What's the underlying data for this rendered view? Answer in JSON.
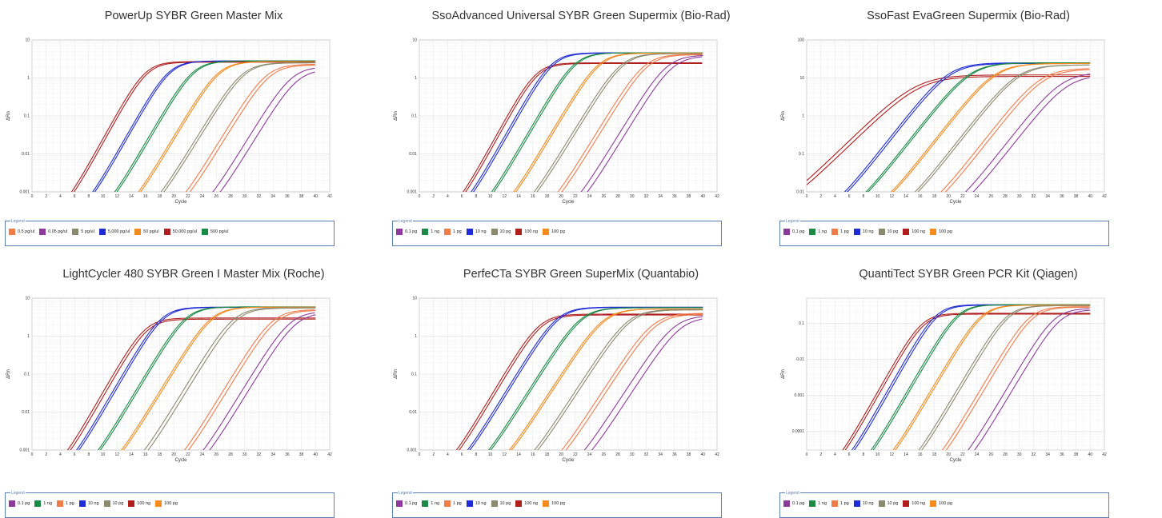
{
  "charts": [
    {
      "title": "PowerUp SYBR Green Master Mix",
      "chart_data": {
        "type": "line",
        "xlabel": "Cycle",
        "ylabel": "ΔRn",
        "yscale": "log",
        "xlim": [
          0,
          42
        ],
        "ylim": [
          0.001,
          10
        ],
        "ytick_labels": [
          "0.001",
          "0.01",
          "0.1",
          "1",
          "10"
        ],
        "legend_title": "Legend",
        "legend_placement": "bottom",
        "legend": [
          {
            "label": "0.5 pg/ul",
            "color": "#f07c4a"
          },
          {
            "label": "0.05 pg/ul",
            "color": "#8e3a9d"
          },
          {
            "label": "5 pg/ul",
            "color": "#8b8a6e"
          },
          {
            "label": "5,000 pg/ul",
            "color": "#1f2bd6"
          },
          {
            "label": "50 pg/ul",
            "color": "#f58a1f"
          },
          {
            "label": "50,000 pg/ul",
            "color": "#b01e1e"
          },
          {
            "label": "500 pg/ul",
            "color": "#1a8a45"
          }
        ],
        "series": [
          {
            "color": "#b01e1e",
            "ct": 12.5,
            "plateau": 2.7,
            "k": 0.78
          },
          {
            "color": "#b01e1e",
            "ct": 12.8,
            "plateau": 2.6,
            "k": 0.78
          },
          {
            "color": "#1f2bd6",
            "ct": 15.8,
            "plateau": 2.8,
            "k": 0.76
          },
          {
            "color": "#1f2bd6",
            "ct": 16.1,
            "plateau": 2.8,
            "k": 0.76
          },
          {
            "color": "#1a8a45",
            "ct": 19.2,
            "plateau": 2.8,
            "k": 0.74
          },
          {
            "color": "#1a8a45",
            "ct": 19.5,
            "plateau": 2.8,
            "k": 0.74
          },
          {
            "color": "#f58a1f",
            "ct": 22.8,
            "plateau": 2.7,
            "k": 0.72
          },
          {
            "color": "#f58a1f",
            "ct": 23.1,
            "plateau": 2.7,
            "k": 0.72
          },
          {
            "color": "#8b8a6e",
            "ct": 26.2,
            "plateau": 2.5,
            "k": 0.7
          },
          {
            "color": "#8b8a6e",
            "ct": 26.6,
            "plateau": 2.5,
            "k": 0.7
          },
          {
            "color": "#f07c4a",
            "ct": 29.6,
            "plateau": 2.3,
            "k": 0.7
          },
          {
            "color": "#f07c4a",
            "ct": 30.1,
            "plateau": 2.2,
            "k": 0.7
          },
          {
            "color": "#8e3a9d",
            "ct": 33.2,
            "plateau": 2.0,
            "k": 0.7
          },
          {
            "color": "#8e3a9d",
            "ct": 34.0,
            "plateau": 1.7,
            "k": 0.7
          }
        ]
      }
    },
    {
      "title": "SsoAdvanced Universal SYBR Green Supermix (Bio-Rad)",
      "chart_data": {
        "type": "line",
        "xlabel": "Cycle",
        "ylabel": "ΔRn",
        "yscale": "log",
        "xlim": [
          0,
          42
        ],
        "ylim": [
          0.001,
          10
        ],
        "ytick_labels": [
          "0.001",
          "0.01",
          "0.1",
          "1",
          "10"
        ],
        "legend_title": "Legend",
        "legend_placement": "bottom",
        "legend": [
          {
            "label": "0.1 pg",
            "color": "#8e3a9d"
          },
          {
            "label": "1 ng",
            "color": "#1a8a45"
          },
          {
            "label": "1 pg",
            "color": "#f07c4a"
          },
          {
            "label": "10 ng",
            "color": "#1f2bd6"
          },
          {
            "label": "10 pg",
            "color": "#8b8a6e"
          },
          {
            "label": "100 ng",
            "color": "#b01e1e"
          },
          {
            "label": "100 pg",
            "color": "#f58a1f"
          }
        ],
        "series": [
          {
            "color": "#b01e1e",
            "ct": 13.0,
            "plateau": 2.5,
            "k": 0.78
          },
          {
            "color": "#b01e1e",
            "ct": 13.3,
            "plateau": 2.4,
            "k": 0.78
          },
          {
            "color": "#1f2bd6",
            "ct": 15.2,
            "plateau": 4.6,
            "k": 0.76
          },
          {
            "color": "#1f2bd6",
            "ct": 15.5,
            "plateau": 4.5,
            "k": 0.76
          },
          {
            "color": "#1a8a45",
            "ct": 18.4,
            "plateau": 4.6,
            "k": 0.74
          },
          {
            "color": "#1a8a45",
            "ct": 18.7,
            "plateau": 4.6,
            "k": 0.74
          },
          {
            "color": "#f58a1f",
            "ct": 21.8,
            "plateau": 4.5,
            "k": 0.72
          },
          {
            "color": "#f58a1f",
            "ct": 22.1,
            "plateau": 4.5,
            "k": 0.72
          },
          {
            "color": "#8b8a6e",
            "ct": 25.0,
            "plateau": 4.4,
            "k": 0.7
          },
          {
            "color": "#8b8a6e",
            "ct": 25.4,
            "plateau": 4.4,
            "k": 0.7
          },
          {
            "color": "#f07c4a",
            "ct": 28.3,
            "plateau": 4.2,
            "k": 0.7
          },
          {
            "color": "#f07c4a",
            "ct": 28.8,
            "plateau": 4.1,
            "k": 0.7
          },
          {
            "color": "#8e3a9d",
            "ct": 31.5,
            "plateau": 4.0,
            "k": 0.7
          },
          {
            "color": "#8e3a9d",
            "ct": 32.3,
            "plateau": 3.8,
            "k": 0.7
          }
        ]
      }
    },
    {
      "title": "SsoFast EvaGreen Supermix (Bio-Rad)",
      "chart_data": {
        "type": "line",
        "xlabel": "Cycle",
        "ylabel": "ΔRn",
        "yscale": "log",
        "xlim": [
          0,
          42
        ],
        "ylim": [
          0.01,
          100
        ],
        "ytick_labels": [
          "0.01",
          "0.1",
          "1",
          "10",
          "100"
        ],
        "legend_title": "Legend",
        "legend_placement": "bottom",
        "legend": [
          {
            "label": "0.1 pg",
            "color": "#8e3a9d"
          },
          {
            "label": "1 ng",
            "color": "#1a8a45"
          },
          {
            "label": "1 pg",
            "color": "#f07c4a"
          },
          {
            "label": "10 ng",
            "color": "#1f2bd6"
          },
          {
            "label": "10 pg",
            "color": "#8b8a6e"
          },
          {
            "label": "100 ng",
            "color": "#b01e1e"
          },
          {
            "label": "100 pg",
            "color": "#f58a1f"
          }
        ],
        "series": [
          {
            "color": "#b01e1e",
            "ct": 12.0,
            "plateau": 12,
            "k": 0.42
          },
          {
            "color": "#b01e1e",
            "ct": 12.5,
            "plateau": 11,
            "k": 0.42
          },
          {
            "color": "#1f2bd6",
            "ct": 16.5,
            "plateau": 25,
            "k": 0.55
          },
          {
            "color": "#1f2bd6",
            "ct": 16.8,
            "plateau": 24,
            "k": 0.55
          },
          {
            "color": "#1a8a45",
            "ct": 19.5,
            "plateau": 25,
            "k": 0.55
          },
          {
            "color": "#1a8a45",
            "ct": 19.8,
            "plateau": 25,
            "k": 0.55
          },
          {
            "color": "#f58a1f",
            "ct": 23.0,
            "plateau": 24,
            "k": 0.55
          },
          {
            "color": "#f58a1f",
            "ct": 23.3,
            "plateau": 24,
            "k": 0.55
          },
          {
            "color": "#8b8a6e",
            "ct": 26.2,
            "plateau": 22,
            "k": 0.55
          },
          {
            "color": "#8b8a6e",
            "ct": 26.6,
            "plateau": 22,
            "k": 0.55
          },
          {
            "color": "#f07c4a",
            "ct": 29.5,
            "plateau": 18,
            "k": 0.55
          },
          {
            "color": "#f07c4a",
            "ct": 30.0,
            "plateau": 17,
            "k": 0.55
          },
          {
            "color": "#8e3a9d",
            "ct": 32.5,
            "plateau": 14,
            "k": 0.55
          },
          {
            "color": "#8e3a9d",
            "ct": 33.3,
            "plateau": 12,
            "k": 0.55
          }
        ]
      }
    },
    {
      "title": "LightCycler 480 SYBR Green I Master Mix (Roche)",
      "chart_data": {
        "type": "line",
        "xlabel": "Cycle",
        "ylabel": "ΔRn",
        "yscale": "log",
        "xlim": [
          0,
          42
        ],
        "ylim": [
          0.001,
          10
        ],
        "ytick_labels": [
          "0.001",
          "0.01",
          "0.1",
          "1",
          "10"
        ],
        "legend_title": "Legend",
        "legend_placement": "bottom",
        "legend": [
          {
            "label": "0.1 pg",
            "color": "#8e3a9d"
          },
          {
            "label": "1 ng",
            "color": "#1a8a45"
          },
          {
            "label": "1 pg",
            "color": "#f07c4a"
          },
          {
            "label": "10 ng",
            "color": "#1f2bd6"
          },
          {
            "label": "10 pg",
            "color": "#8b8a6e"
          },
          {
            "label": "100 ng",
            "color": "#b01e1e"
          },
          {
            "label": "100 pg",
            "color": "#f58a1f"
          }
        ],
        "series": [
          {
            "color": "#b01e1e",
            "ct": 12.5,
            "plateau": 3.0,
            "k": 0.75
          },
          {
            "color": "#b01e1e",
            "ct": 12.8,
            "plateau": 2.8,
            "k": 0.75
          },
          {
            "color": "#1f2bd6",
            "ct": 14.8,
            "plateau": 5.8,
            "k": 0.74
          },
          {
            "color": "#1f2bd6",
            "ct": 15.1,
            "plateau": 5.7,
            "k": 0.74
          },
          {
            "color": "#1a8a45",
            "ct": 18.2,
            "plateau": 5.9,
            "k": 0.72
          },
          {
            "color": "#1a8a45",
            "ct": 18.5,
            "plateau": 5.9,
            "k": 0.72
          },
          {
            "color": "#f58a1f",
            "ct": 21.8,
            "plateau": 5.8,
            "k": 0.7
          },
          {
            "color": "#f58a1f",
            "ct": 22.1,
            "plateau": 5.8,
            "k": 0.7
          },
          {
            "color": "#8b8a6e",
            "ct": 25.0,
            "plateau": 5.6,
            "k": 0.7
          },
          {
            "color": "#8b8a6e",
            "ct": 25.5,
            "plateau": 5.5,
            "k": 0.7
          },
          {
            "color": "#f07c4a",
            "ct": 30.5,
            "plateau": 5.0,
            "k": 0.7
          },
          {
            "color": "#f07c4a",
            "ct": 31.0,
            "plateau": 4.8,
            "k": 0.7
          },
          {
            "color": "#8e3a9d",
            "ct": 33.0,
            "plateau": 4.5,
            "k": 0.7
          },
          {
            "color": "#8e3a9d",
            "ct": 33.8,
            "plateau": 4.2,
            "k": 0.7
          }
        ]
      }
    },
    {
      "title": "PerfeCTa SYBR Green SuperMix (Quantabio)",
      "chart_data": {
        "type": "line",
        "xlabel": "Cycle",
        "ylabel": "ΔRn",
        "yscale": "log",
        "xlim": [
          0,
          42
        ],
        "ylim": [
          0.001,
          10
        ],
        "ytick_labels": [
          "0.001",
          "0.01",
          "0.1",
          "1",
          "10"
        ],
        "legend_title": "Legend",
        "legend_placement": "bottom",
        "legend": [
          {
            "label": "0.1 pg",
            "color": "#8e3a9d"
          },
          {
            "label": "1 ng",
            "color": "#1a8a45"
          },
          {
            "label": "1 pg",
            "color": "#f07c4a"
          },
          {
            "label": "10 ng",
            "color": "#1f2bd6"
          },
          {
            "label": "10 pg",
            "color": "#8b8a6e"
          },
          {
            "label": "100 ng",
            "color": "#b01e1e"
          },
          {
            "label": "100 pg",
            "color": "#f58a1f"
          }
        ],
        "series": [
          {
            "color": "#b01e1e",
            "ct": 13.5,
            "plateau": 3.8,
            "k": 0.72
          },
          {
            "color": "#b01e1e",
            "ct": 13.8,
            "plateau": 3.6,
            "k": 0.72
          },
          {
            "color": "#1f2bd6",
            "ct": 16.0,
            "plateau": 5.8,
            "k": 0.7
          },
          {
            "color": "#1f2bd6",
            "ct": 16.3,
            "plateau": 5.7,
            "k": 0.7
          },
          {
            "color": "#1a8a45",
            "ct": 19.3,
            "plateau": 5.6,
            "k": 0.68
          },
          {
            "color": "#1a8a45",
            "ct": 19.6,
            "plateau": 5.6,
            "k": 0.68
          },
          {
            "color": "#f58a1f",
            "ct": 22.5,
            "plateau": 5.2,
            "k": 0.66
          },
          {
            "color": "#f58a1f",
            "ct": 22.8,
            "plateau": 5.2,
            "k": 0.66
          },
          {
            "color": "#8b8a6e",
            "ct": 26.0,
            "plateau": 5.0,
            "k": 0.66
          },
          {
            "color": "#8b8a6e",
            "ct": 26.4,
            "plateau": 4.9,
            "k": 0.66
          },
          {
            "color": "#f07c4a",
            "ct": 29.5,
            "plateau": 4.0,
            "k": 0.66
          },
          {
            "color": "#f07c4a",
            "ct": 30.0,
            "plateau": 3.8,
            "k": 0.66
          },
          {
            "color": "#8e3a9d",
            "ct": 32.5,
            "plateau": 3.5,
            "k": 0.66
          },
          {
            "color": "#8e3a9d",
            "ct": 33.4,
            "plateau": 3.2,
            "k": 0.66
          }
        ]
      }
    },
    {
      "title": "QuantiTect SYBR Green PCR Kit (Qiagen)",
      "chart_data": {
        "type": "line",
        "xlabel": "Cycle",
        "ylabel": "ΔRn",
        "yscale": "log",
        "xlim": [
          0,
          42
        ],
        "ylim": [
          3e-05,
          0.5
        ],
        "ytick_labels": [
          "0.0001",
          "0.001",
          "0.01",
          "0.1"
        ],
        "legend_title": "Legend",
        "legend_placement": "bottom",
        "legend": [
          {
            "label": "0.1 pg",
            "color": "#8e3a9d"
          },
          {
            "label": "1 ng",
            "color": "#1a8a45"
          },
          {
            "label": "1 pg",
            "color": "#f07c4a"
          },
          {
            "label": "10 ng",
            "color": "#1f2bd6"
          },
          {
            "label": "10 pg",
            "color": "#8b8a6e"
          },
          {
            "label": "100 ng",
            "color": "#b01e1e"
          },
          {
            "label": "100 pg",
            "color": "#f58a1f"
          }
        ],
        "series": [
          {
            "color": "#b01e1e",
            "ct": 12.8,
            "plateau": 0.19,
            "k": 0.8
          },
          {
            "color": "#b01e1e",
            "ct": 13.1,
            "plateau": 0.18,
            "k": 0.8
          },
          {
            "color": "#1f2bd6",
            "ct": 14.8,
            "plateau": 0.33,
            "k": 0.8
          },
          {
            "color": "#1f2bd6",
            "ct": 15.1,
            "plateau": 0.32,
            "k": 0.8
          },
          {
            "color": "#1a8a45",
            "ct": 17.8,
            "plateau": 0.33,
            "k": 0.78
          },
          {
            "color": "#1a8a45",
            "ct": 18.1,
            "plateau": 0.33,
            "k": 0.78
          },
          {
            "color": "#f58a1f",
            "ct": 21.2,
            "plateau": 0.32,
            "k": 0.76
          },
          {
            "color": "#f58a1f",
            "ct": 21.5,
            "plateau": 0.32,
            "k": 0.76
          },
          {
            "color": "#8b8a6e",
            "ct": 24.8,
            "plateau": 0.31,
            "k": 0.76
          },
          {
            "color": "#8b8a6e",
            "ct": 25.2,
            "plateau": 0.31,
            "k": 0.76
          },
          {
            "color": "#f07c4a",
            "ct": 28.0,
            "plateau": 0.29,
            "k": 0.76
          },
          {
            "color": "#f07c4a",
            "ct": 28.5,
            "plateau": 0.28,
            "k": 0.76
          },
          {
            "color": "#8e3a9d",
            "ct": 31.5,
            "plateau": 0.26,
            "k": 0.76
          },
          {
            "color": "#8e3a9d",
            "ct": 32.3,
            "plateau": 0.24,
            "k": 0.76
          }
        ]
      }
    }
  ]
}
